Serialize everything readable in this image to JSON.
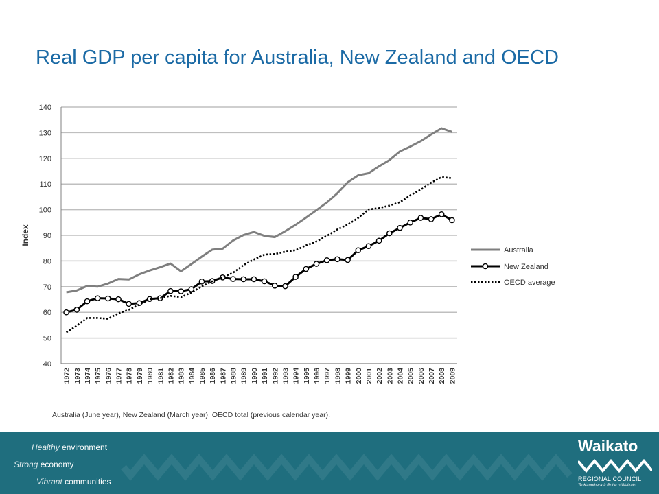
{
  "slide": {
    "title": "Real GDP per capita for Australia, New Zealand and OECD"
  },
  "footer": {
    "taglines": [
      {
        "em": "Healthy",
        "rest": " environment"
      },
      {
        "em": "Strong",
        "rest": " economy"
      },
      {
        "em": "Vibrant",
        "rest": " communities"
      }
    ],
    "logo": {
      "name": "Waikato",
      "subtitle": "REGIONAL COUNCIL",
      "maori": "Te Kaunihera ā Rohe o Waikato"
    },
    "background": "#1f6e7e"
  },
  "chart_data": {
    "type": "line",
    "title": "",
    "xlabel": "",
    "ylabel": "Index",
    "ylim": [
      40,
      140
    ],
    "yticks": [
      40,
      50,
      60,
      70,
      80,
      90,
      100,
      110,
      120,
      130,
      140
    ],
    "grid": true,
    "legend_position": "right",
    "note": "Australia (June year), New Zealand (March year), OECD total (previous calendar year).",
    "x": [
      "1972",
      "1973",
      "1974",
      "1975",
      "1976",
      "1977",
      "1978",
      "1979",
      "1980",
      "1981",
      "1982",
      "1983",
      "1984",
      "1985",
      "1986",
      "1987",
      "1988",
      "1989",
      "1990",
      "1991",
      "1992",
      "1993",
      "1994",
      "1995",
      "1996",
      "1997",
      "1998",
      "1999",
      "2000",
      "2001",
      "2002",
      "2003",
      "2004",
      "2005",
      "2006",
      "2007",
      "2008",
      "2009"
    ],
    "x_ticks": [
      "1972",
      "1973",
      "1974",
      "1975",
      "1976",
      "1977",
      "1978",
      "1979",
      "1980",
      "1981",
      "1982",
      "1983",
      "1984",
      "1985",
      "1986",
      "1987",
      "1988",
      "1989",
      "1990",
      "1991",
      "1992",
      "1993",
      "1994",
      "1995",
      "1996",
      "1997",
      "1998",
      "1999",
      "2000",
      "2001",
      "2002",
      "2003",
      "2004",
      "2005",
      "2006",
      "2007",
      "2008",
      "2009"
    ],
    "series": [
      {
        "name": "Australia",
        "style": "solid",
        "color": "#7f7f7f",
        "markers": false,
        "values": [
          67.8,
          68.5,
          70.3,
          70.0,
          71.2,
          73.0,
          72.8,
          74.8,
          76.3,
          77.6,
          79.0,
          76.0,
          78.8,
          81.7,
          84.4,
          84.8,
          88.0,
          90.1,
          91.3,
          89.8,
          89.3,
          91.6,
          94.1,
          96.9,
          99.8,
          102.8,
          106.4,
          110.7,
          113.4,
          114.2,
          116.9,
          119.3,
          122.7,
          124.6,
          126.7,
          129.3,
          131.7,
          130.3
        ]
      },
      {
        "name": "New Zealand",
        "style": "solid",
        "color": "#000000",
        "markers": true,
        "values": [
          60.0,
          61.0,
          64.3,
          65.5,
          65.4,
          65.1,
          63.3,
          63.6,
          65.2,
          65.5,
          68.3,
          68.2,
          69.0,
          72.0,
          72.2,
          73.6,
          73.0,
          72.9,
          72.9,
          72.1,
          70.4,
          70.2,
          73.8,
          76.9,
          78.9,
          80.3,
          80.7,
          80.4,
          84.2,
          85.8,
          87.9,
          90.8,
          92.9,
          95.0,
          96.8,
          96.3,
          98.2,
          95.9
        ]
      },
      {
        "name": "OECD average",
        "style": "dotted",
        "color": "#000000",
        "markers": false,
        "values": [
          52.2,
          54.8,
          57.8,
          57.8,
          57.5,
          59.6,
          61.0,
          63.0,
          65.1,
          65.5,
          66.4,
          65.9,
          67.7,
          70.1,
          72.1,
          73.7,
          75.4,
          78.4,
          80.6,
          82.5,
          82.7,
          83.6,
          84.2,
          86.1,
          87.6,
          89.8,
          92.3,
          94.2,
          96.8,
          100.1,
          100.6,
          101.6,
          102.9,
          105.6,
          107.8,
          110.5,
          112.7,
          112.3
        ]
      }
    ]
  }
}
